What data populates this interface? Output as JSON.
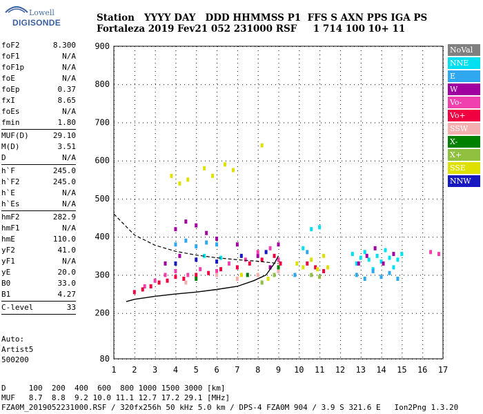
{
  "logo": {
    "brand_top": "Lowell",
    "brand_bottom": "DIGISONDE"
  },
  "header": {
    "line1": "Station   YYYY DAY   DDD HHMMSS P1  FFS S AXN PPS IGA PS",
    "line2": "Fortaleza 2019 Fev21 052 231000 RSF     1 714 100 10+ 11"
  },
  "params": {
    "group1": [
      {
        "label": "foF2",
        "value": "8.300"
      },
      {
        "label": "foF1",
        "value": "N/A"
      },
      {
        "label": "foF1p",
        "value": "N/A"
      },
      {
        "label": "foE",
        "value": "N/A"
      },
      {
        "label": "foEp",
        "value": "0.37"
      },
      {
        "label": "fxI",
        "value": "8.65"
      },
      {
        "label": "foEs",
        "value": "N/A"
      },
      {
        "label": "fmin",
        "value": "1.80"
      }
    ],
    "group2": [
      {
        "label": "MUF(D)",
        "value": "29.10"
      },
      {
        "label": "M(D)",
        "value": "3.51"
      },
      {
        "label": "D",
        "value": "N/A"
      }
    ],
    "group3": [
      {
        "label": "h`F",
        "value": "245.0"
      },
      {
        "label": "h`F2",
        "value": "245.0"
      },
      {
        "label": "h`E",
        "value": "N/A"
      },
      {
        "label": "h`Es",
        "value": "N/A"
      }
    ],
    "group4": [
      {
        "label": "hmF2",
        "value": "282.9"
      },
      {
        "label": "hmF1",
        "value": "N/A"
      },
      {
        "label": "hmE",
        "value": "110.0"
      },
      {
        "label": "yF2",
        "value": "41.0"
      },
      {
        "label": "yF1",
        "value": "N/A"
      },
      {
        "label": "yE",
        "value": "20.0"
      },
      {
        "label": "B0",
        "value": "33.0"
      },
      {
        "label": "B1",
        "value": "4.27"
      }
    ],
    "clevel": {
      "label": "C-level",
      "value": "33"
    }
  },
  "info": {
    "line1": "Auto:",
    "line2": "Artist5",
    "line3": "500200"
  },
  "footer": {
    "line1": "D     100  200  400  600  800 1000 1500 3000 [km]",
    "line2": "MUF   8.7  8.8  9.2 10.0 11.1 12.7 17.2 29.1 [MHz]",
    "line3": "FZA0M_2019052231000.RSF / 320fx256h 50 kHz 5.0 km / DPS-4 FZA0M 904 / 3.9 S 321.6 E   Ion2Png 1.3.20"
  },
  "legend": [
    {
      "label": "NoVal",
      "color": "#808080"
    },
    {
      "label": "NNE",
      "color": "#00e0f0"
    },
    {
      "label": "E",
      "color": "#30a8f0"
    },
    {
      "label": "W",
      "color": "#a000a0"
    },
    {
      "label": "Vo-",
      "color": "#f040b0"
    },
    {
      "label": "Vo+",
      "color": "#f00040"
    },
    {
      "label": "SSW",
      "color": "#f4b0b0"
    },
    {
      "label": "X-",
      "color": "#008000"
    },
    {
      "label": "X+",
      "color": "#90c040"
    },
    {
      "label": "SSE",
      "color": "#e0e000"
    },
    {
      "label": "NNW",
      "color": "#1818c0"
    }
  ],
  "chart_data": {
    "type": "scatter",
    "title": "",
    "xlabel": "",
    "ylabel": "",
    "xlim": [
      1,
      17
    ],
    "ylim": [
      80,
      900
    ],
    "x_ticks": [
      1,
      2,
      3,
      4,
      5,
      6,
      7,
      8,
      9,
      10,
      11,
      12,
      13,
      14,
      15,
      16,
      17
    ],
    "y_ticks": [
      80,
      200,
      300,
      400,
      500,
      600,
      700,
      800,
      900
    ],
    "grid": true,
    "series": [
      {
        "name": "NNE",
        "points": [
          [
            12.6,
            355
          ],
          [
            12.8,
            330
          ],
          [
            13,
            345
          ],
          [
            13.2,
            360
          ],
          [
            13.4,
            340
          ],
          [
            13.6,
            315
          ],
          [
            13.8,
            350
          ],
          [
            14,
            335
          ],
          [
            14.2,
            365
          ],
          [
            14.4,
            345
          ],
          [
            14.6,
            320
          ],
          [
            14.8,
            340
          ],
          [
            15,
            355
          ],
          [
            10.2,
            370
          ],
          [
            10.6,
            420
          ],
          [
            11,
            425
          ],
          [
            5.4,
            350
          ],
          [
            6.2,
            345
          ]
        ]
      },
      {
        "name": "E",
        "points": [
          [
            4,
            380
          ],
          [
            4.5,
            390
          ],
          [
            5,
            375
          ],
          [
            5.5,
            385
          ],
          [
            6,
            380
          ],
          [
            12.8,
            300
          ],
          [
            13.2,
            290
          ],
          [
            13.6,
            310
          ],
          [
            14,
            295
          ],
          [
            14.4,
            305
          ],
          [
            14.8,
            290
          ],
          [
            9.8,
            300
          ],
          [
            10.4,
            360
          ]
        ]
      },
      {
        "name": "W",
        "points": [
          [
            4,
            420
          ],
          [
            4.5,
            440
          ],
          [
            5,
            430
          ],
          [
            5.5,
            410
          ],
          [
            6,
            395
          ],
          [
            3.5,
            330
          ],
          [
            4.2,
            350
          ],
          [
            7,
            380
          ],
          [
            8,
            350
          ],
          [
            8.6,
            320
          ],
          [
            9,
            380
          ],
          [
            12.9,
            330
          ],
          [
            13.3,
            350
          ],
          [
            13.7,
            370
          ],
          [
            14.1,
            330
          ],
          [
            14.6,
            355
          ]
        ]
      },
      {
        "name": "Vo-",
        "points": [
          [
            2.5,
            270
          ],
          [
            3,
            285
          ],
          [
            3.5,
            300
          ],
          [
            4,
            310
          ],
          [
            4.6,
            300
          ],
          [
            5.2,
            315
          ],
          [
            6,
            310
          ],
          [
            6.6,
            330
          ],
          [
            7.4,
            340
          ],
          [
            8,
            360
          ],
          [
            8.6,
            370
          ],
          [
            9,
            340
          ],
          [
            16.4,
            360
          ],
          [
            16.8,
            355
          ]
        ]
      },
      {
        "name": "Vo+",
        "points": [
          [
            2,
            255
          ],
          [
            2.4,
            262
          ],
          [
            2.8,
            270
          ],
          [
            3.2,
            280
          ],
          [
            3.6,
            285
          ],
          [
            4,
            295
          ],
          [
            4.4,
            290
          ],
          [
            5,
            300
          ],
          [
            5.6,
            305
          ],
          [
            6.2,
            315
          ],
          [
            7,
            320
          ],
          [
            7.6,
            330
          ],
          [
            8.2,
            340
          ],
          [
            8.8,
            350
          ],
          [
            9.1,
            330
          ],
          [
            10.4,
            330
          ],
          [
            10.8,
            320
          ],
          [
            11.2,
            310
          ]
        ]
      },
      {
        "name": "SSW",
        "points": [
          [
            6,
            300
          ],
          [
            7,
            290
          ],
          [
            8,
            300
          ],
          [
            9,
            310
          ],
          [
            4.5,
            280
          ]
        ]
      },
      {
        "name": "X-",
        "points": [
          [
            5,
            290
          ],
          [
            7.5,
            300
          ],
          [
            9,
            320
          ]
        ]
      },
      {
        "name": "X+",
        "points": [
          [
            8.2,
            280
          ],
          [
            8.8,
            300
          ],
          [
            10.6,
            300
          ],
          [
            11,
            295
          ]
        ]
      },
      {
        "name": "SSE",
        "points": [
          [
            3.8,
            560
          ],
          [
            4.2,
            540
          ],
          [
            4.6,
            550
          ],
          [
            5.4,
            580
          ],
          [
            5.8,
            560
          ],
          [
            6.4,
            590
          ],
          [
            6.8,
            575
          ],
          [
            8.2,
            640
          ],
          [
            9.9,
            330
          ],
          [
            10.2,
            320
          ],
          [
            10.6,
            340
          ],
          [
            10.9,
            315
          ],
          [
            11.2,
            350
          ],
          [
            11.4,
            320
          ],
          [
            7.2,
            300
          ],
          [
            8.5,
            290
          ]
        ]
      },
      {
        "name": "NNW",
        "points": [
          [
            4,
            330
          ],
          [
            5,
            340
          ],
          [
            6,
            335
          ],
          [
            7.2,
            350
          ],
          [
            8.4,
            360
          ]
        ]
      }
    ],
    "curves": {
      "x_trace": [
        [
          1,
          460
        ],
        [
          2,
          405
        ],
        [
          3,
          378
        ],
        [
          4,
          362
        ],
        [
          5,
          352
        ],
        [
          6,
          345
        ],
        [
          7,
          340
        ],
        [
          8,
          336
        ],
        [
          9,
          330
        ]
      ],
      "o_trace": [
        [
          1.6,
          230
        ],
        [
          2,
          236
        ],
        [
          3,
          244
        ],
        [
          4,
          250
        ],
        [
          5,
          255
        ],
        [
          6,
          262
        ],
        [
          7,
          270
        ],
        [
          7.8,
          285
        ],
        [
          8.4,
          300
        ],
        [
          8.8,
          330
        ],
        [
          9,
          350
        ]
      ]
    }
  }
}
